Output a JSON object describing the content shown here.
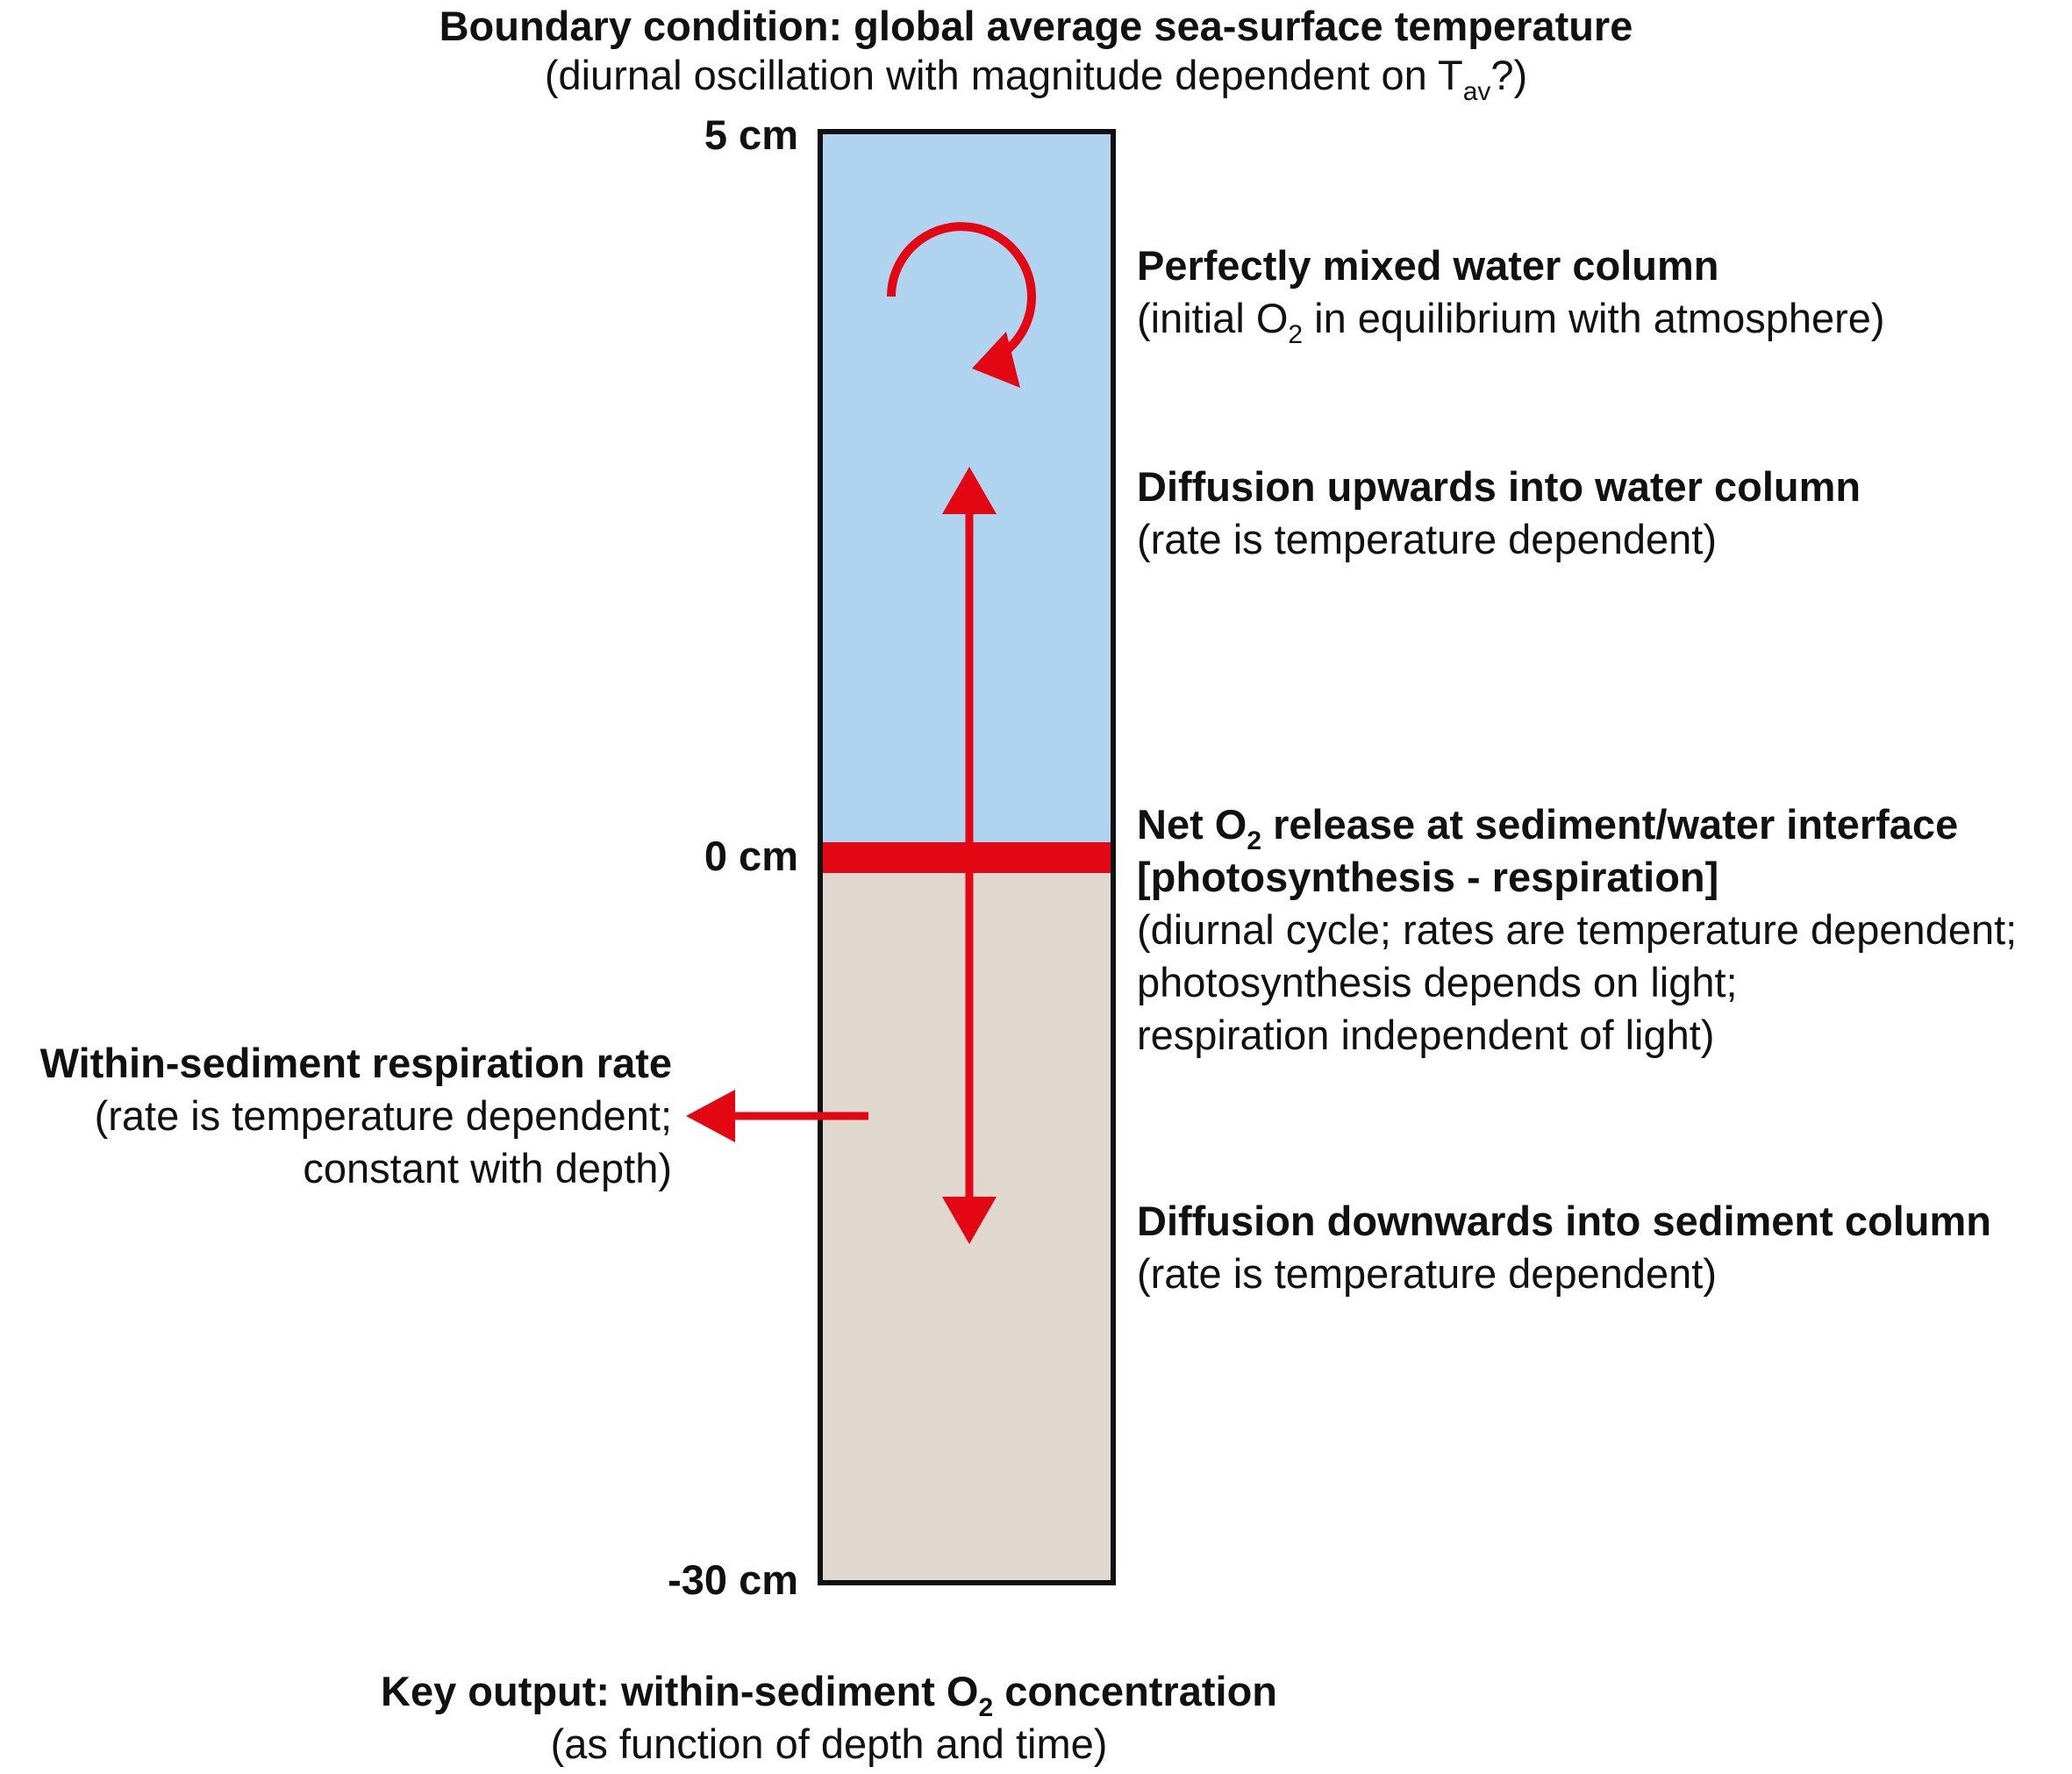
{
  "top": {
    "title": "Boundary condition: global average sea-surface temperature",
    "subtitle_pre": "(diurnal oscillation with magnitude dependent on T",
    "subtitle_sub": "av",
    "subtitle_post": "?)"
  },
  "depth_labels": {
    "top": "5 cm",
    "interface": "0 cm",
    "bottom": "-30 cm"
  },
  "annotations": {
    "mixed": {
      "title": "Perfectly mixed water column",
      "line_pre": "(initial O",
      "line_sub": "2",
      "line_post": " in equilibrium with atmosphere)"
    },
    "diffusion_up": {
      "title": "Diffusion upwards into water column",
      "line": "(rate is temperature dependent)"
    },
    "net_release": {
      "title_pre": "Net O",
      "title_sub": "2",
      "title_post": " release at sediment/water interface",
      "title2": "[photosynthesis - respiration]",
      "line1": "(diurnal cycle; rates are temperature dependent;",
      "line2": "photosynthesis depends on light;",
      "line3": "respiration independent of light)"
    },
    "respiration": {
      "title": "Within-sediment respiration rate",
      "line1": "(rate is temperature dependent;",
      "line2": "constant with depth)"
    },
    "diffusion_down": {
      "title": "Diffusion downwards into sediment column",
      "line": "(rate is temperature dependent)"
    }
  },
  "bottom": {
    "title_pre": "Key output: within-sediment O",
    "title_sub": "2",
    "title_post": " concentration",
    "subtitle": "(as function of depth and time)"
  },
  "colors": {
    "water": "#b0d3f0",
    "sediment": "#e0d8ce",
    "interface": "#e30613",
    "arrow": "#e30613",
    "outline": "#111111"
  }
}
